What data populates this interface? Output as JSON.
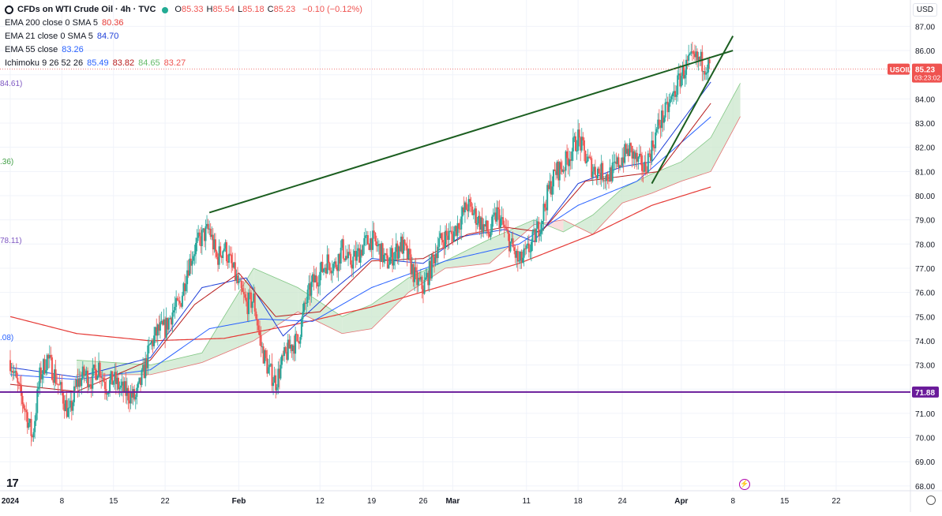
{
  "header": {
    "symbol_title": "CFDs on WTI Crude Oil · 4h · TVC",
    "ohlc": [
      {
        "key": "O",
        "value": "85.33"
      },
      {
        "key": "H",
        "value": "85.54"
      },
      {
        "key": "L",
        "value": "85.18"
      },
      {
        "key": "C",
        "value": "85.23"
      }
    ],
    "change": "−0.10 (−0.12%)",
    "currency": "USD"
  },
  "indicators": [
    {
      "label": "EMA 200 close 0 SMA 5",
      "values": [
        "80.36"
      ],
      "colors": [
        "#e53935"
      ]
    },
    {
      "label": "EMA 21 close 0 SMA 5",
      "values": [
        "84.70"
      ],
      "colors": [
        "#1e3fd8"
      ]
    },
    {
      "label": "EMA 55 close",
      "values": [
        "83.26"
      ],
      "colors": [
        "#2962ff"
      ]
    },
    {
      "label": "Ichimoku 9 26 52 26",
      "values": [
        "85.49",
        "83.82",
        "84.65",
        "83.27"
      ],
      "colors": [
        "#2962ff",
        "#b71c1c",
        "#66bb6a",
        "#ef5350"
      ]
    }
  ],
  "left_edge_labels": [
    {
      "text": "84.61)",
      "color": "#7e57c2",
      "y": 84.61
    },
    {
      "text": ".36)",
      "color": "#43a047",
      "y": 81.36
    },
    {
      "text": "78.11)",
      "color": "#7e57c2",
      "y": 78.11
    },
    {
      "text": ".08)",
      "color": "#2962ff",
      "y": 74.08
    }
  ],
  "colors": {
    "up": "#26a69a",
    "down": "#ef5350",
    "trendline": "#1b5e20",
    "support": "#6a1b9a",
    "last_price_badge": "#ef5350",
    "ema200": "#e53935",
    "ema21": "#1e3fd8",
    "ema55": "#2962ff",
    "kijun": "#b71c1c",
    "cloud_bull": "#c8e6c9",
    "cloud_bear": "#f8d0d0"
  },
  "chart_data": {
    "type": "candlestick",
    "timeframe": "4h",
    "ylim": [
      67.8,
      87.6
    ],
    "y_ticks": [
      "68.00",
      "69.00",
      "70.00",
      "71.00",
      "72.00",
      "73.00",
      "74.00",
      "75.00",
      "76.00",
      "77.00",
      "78.00",
      "79.00",
      "80.00",
      "81.00",
      "82.00",
      "83.00",
      "84.00",
      "85.00",
      "86.00",
      "87.00"
    ],
    "x_ticks": [
      "2024",
      "8",
      "15",
      "22",
      "Feb",
      "12",
      "19",
      "26",
      "Mar",
      "11",
      "18",
      "24",
      "Apr",
      "8",
      "15",
      "22"
    ],
    "x_tick_days": [
      1,
      8,
      15,
      22,
      32,
      43,
      50,
      57,
      61,
      71,
      78,
      84,
      92,
      99,
      106,
      113
    ],
    "xlim_days": [
      1,
      119
    ],
    "last_day": 96,
    "price_anchors": [
      [
        1,
        73.2
      ],
      [
        2,
        72.1
      ],
      [
        3,
        71.2
      ],
      [
        4,
        70.0
      ],
      [
        5,
        72.5
      ],
      [
        6,
        73.3
      ],
      [
        7,
        72.6
      ],
      [
        8,
        71.8
      ],
      [
        9,
        70.9
      ],
      [
        10,
        72.2
      ],
      [
        11,
        72.6
      ],
      [
        12,
        72.4
      ],
      [
        13,
        73.0
      ],
      [
        14,
        72.1
      ],
      [
        15,
        72.4
      ],
      [
        16,
        72.0
      ],
      [
        17,
        71.8
      ],
      [
        18,
        71.6
      ],
      [
        19,
        72.6
      ],
      [
        20,
        73.8
      ],
      [
        21,
        74.4
      ],
      [
        22,
        74.5
      ],
      [
        23,
        75.2
      ],
      [
        24,
        75.5
      ],
      [
        25,
        77.0
      ],
      [
        26,
        77.8
      ],
      [
        27,
        78.3
      ],
      [
        28,
        78.6
      ],
      [
        29,
        77.4
      ],
      [
        30,
        77.9
      ],
      [
        31,
        77.1
      ],
      [
        32,
        76.2
      ],
      [
        33,
        75.5
      ],
      [
        34,
        75.7
      ],
      [
        35,
        73.8
      ],
      [
        36,
        72.8
      ],
      [
        37,
        72.3
      ],
      [
        38,
        73.2
      ],
      [
        39,
        73.8
      ],
      [
        40,
        74.0
      ],
      [
        41,
        75.5
      ],
      [
        42,
        76.4
      ],
      [
        43,
        76.8
      ],
      [
        44,
        77.3
      ],
      [
        45,
        77.1
      ],
      [
        46,
        77.8
      ],
      [
        47,
        77.2
      ],
      [
        48,
        77.5
      ],
      [
        49,
        78.0
      ],
      [
        50,
        78.2
      ],
      [
        51,
        77.8
      ],
      [
        52,
        77.2
      ],
      [
        53,
        77.6
      ],
      [
        54,
        78.0
      ],
      [
        55,
        77.4
      ],
      [
        56,
        76.5
      ],
      [
        57,
        76.2
      ],
      [
        58,
        77.0
      ],
      [
        59,
        78.0
      ],
      [
        60,
        78.3
      ],
      [
        61,
        78.4
      ],
      [
        62,
        79.0
      ],
      [
        63,
        79.6
      ],
      [
        64,
        79.2
      ],
      [
        65,
        78.8
      ],
      [
        66,
        78.4
      ],
      [
        67,
        79.3
      ],
      [
        68,
        78.6
      ],
      [
        69,
        77.9
      ],
      [
        70,
        77.2
      ],
      [
        71,
        77.6
      ],
      [
        72,
        78.2
      ],
      [
        73,
        79.0
      ],
      [
        74,
        80.2
      ],
      [
        75,
        81.0
      ],
      [
        76,
        81.2
      ],
      [
        77,
        81.8
      ],
      [
        78,
        82.4
      ],
      [
        79,
        81.6
      ],
      [
        80,
        81.1
      ],
      [
        81,
        81.0
      ],
      [
        82,
        80.8
      ],
      [
        83,
        81.1
      ],
      [
        84,
        81.6
      ],
      [
        85,
        81.9
      ],
      [
        86,
        81.4
      ],
      [
        87,
        81.1
      ],
      [
        88,
        82.0
      ],
      [
        89,
        83.0
      ],
      [
        90,
        83.5
      ],
      [
        91,
        84.2
      ],
      [
        92,
        85.0
      ],
      [
        93,
        85.5
      ],
      [
        94,
        85.6
      ],
      [
        95,
        85.5
      ],
      [
        96,
        85.23
      ]
    ],
    "ema200": [
      [
        1,
        75.0
      ],
      [
        10,
        74.3
      ],
      [
        20,
        74.0
      ],
      [
        30,
        74.1
      ],
      [
        40,
        74.7
      ],
      [
        50,
        75.4
      ],
      [
        60,
        76.3
      ],
      [
        70,
        77.2
      ],
      [
        80,
        78.4
      ],
      [
        88,
        79.6
      ],
      [
        96,
        80.36
      ]
    ],
    "ema55": [
      [
        1,
        72.6
      ],
      [
        10,
        72.4
      ],
      [
        20,
        72.8
      ],
      [
        28,
        74.5
      ],
      [
        35,
        74.9
      ],
      [
        42,
        74.8
      ],
      [
        50,
        76.2
      ],
      [
        60,
        77.3
      ],
      [
        70,
        78.0
      ],
      [
        78,
        79.6
      ],
      [
        86,
        80.6
      ],
      [
        96,
        83.26
      ]
    ],
    "ema21": [
      [
        1,
        72.9
      ],
      [
        10,
        72.5
      ],
      [
        20,
        73.3
      ],
      [
        27,
        76.2
      ],
      [
        33,
        76.6
      ],
      [
        38,
        74.2
      ],
      [
        44,
        75.9
      ],
      [
        50,
        77.4
      ],
      [
        57,
        77.2
      ],
      [
        62,
        78.3
      ],
      [
        68,
        78.6
      ],
      [
        72,
        78.1
      ],
      [
        78,
        80.5
      ],
      [
        84,
        81.2
      ],
      [
        88,
        81.4
      ],
      [
        96,
        84.7
      ]
    ],
    "kijun": [
      [
        1,
        72.2
      ],
      [
        10,
        71.9
      ],
      [
        20,
        73.2
      ],
      [
        26,
        75.5
      ],
      [
        32,
        76.8
      ],
      [
        37,
        75.0
      ],
      [
        43,
        75.2
      ],
      [
        50,
        77.3
      ],
      [
        57,
        77.4
      ],
      [
        63,
        78.4
      ],
      [
        68,
        78.7
      ],
      [
        73,
        78.5
      ],
      [
        79,
        80.6
      ],
      [
        84,
        80.8
      ],
      [
        89,
        81.0
      ],
      [
        93,
        82.6
      ],
      [
        96,
        83.82
      ]
    ],
    "cloud": [
      [
        10,
        73.2,
        72.6
      ],
      [
        20,
        73.0,
        72.6
      ],
      [
        27,
        73.5,
        73.1
      ],
      [
        34,
        77.0,
        74.0
      ],
      [
        40,
        76.2,
        75.2
      ],
      [
        46,
        75.0,
        74.3
      ],
      [
        50,
        75.5,
        74.5
      ],
      [
        55,
        76.6,
        76.0
      ],
      [
        60,
        77.3,
        77.0
      ],
      [
        66,
        78.2,
        77.2
      ],
      [
        72,
        79.0,
        78.8
      ],
      [
        76,
        78.5,
        79.0
      ],
      [
        80,
        79.2,
        78.4
      ],
      [
        84,
        80.3,
        79.7
      ],
      [
        88,
        80.9,
        80.1
      ],
      [
        92,
        81.4,
        80.6
      ],
      [
        96,
        82.4,
        81.0
      ],
      [
        100,
        84.65,
        83.27
      ]
    ],
    "trendline_1": [
      [
        28,
        79.3
      ],
      [
        99,
        86.0
      ]
    ],
    "trendline_2": [
      [
        88,
        80.5
      ],
      [
        99,
        86.6
      ]
    ],
    "support_level": 71.88,
    "last_price": 85.23,
    "last_price_label": "USOIL",
    "last_price_value": "85.23",
    "last_price_countdown": "03:23:02",
    "support_value": "71.88"
  }
}
